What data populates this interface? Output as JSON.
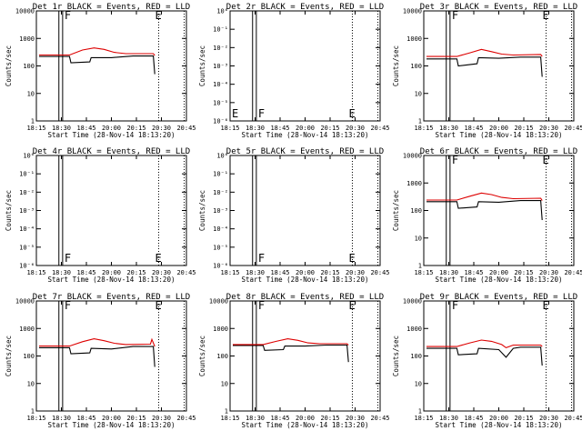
{
  "xticks": [
    "18:15",
    "18:30",
    "18:45",
    "20:00",
    "20:15",
    "20:30",
    "20:45"
  ],
  "xlabel": "Start Time (28-Nov-14 18:13:20)",
  "ylabel": "Counts/sec",
  "series_colors": {
    "events": "#000000",
    "lld": "#dd0000"
  },
  "chart_data": [
    {
      "type": "line",
      "title": "Det 1r BLACK = Events, RED = LLD",
      "scale": "log",
      "ylim": [
        1,
        10000
      ],
      "yticks": [
        "1",
        "10",
        "100",
        "1000",
        "10000"
      ],
      "markers": [
        "F",
        "E"
      ],
      "has_data": true,
      "series": [
        {
          "key": "events",
          "points": [
            [
              0,
              220
            ],
            [
              0.21,
              220
            ],
            [
              0.22,
              130
            ],
            [
              0.35,
              140
            ],
            [
              0.36,
              200
            ],
            [
              0.5,
              200
            ],
            [
              0.65,
              230
            ],
            [
              0.79,
              230
            ],
            [
              0.8,
              50
            ]
          ]
        },
        {
          "key": "lld",
          "points": [
            [
              0,
              250
            ],
            [
              0.21,
              250
            ],
            [
              0.3,
              380
            ],
            [
              0.38,
              450
            ],
            [
              0.45,
              400
            ],
            [
              0.52,
              310
            ],
            [
              0.6,
              280
            ],
            [
              0.79,
              280
            ],
            [
              0.8,
              240
            ]
          ]
        }
      ]
    },
    {
      "type": "line",
      "title": "Det 2r BLACK = Events, RED = LLD",
      "scale": "log",
      "ylim": [
        1,
        1e-06
      ],
      "yticks": [
        "10⁻⁶",
        "10⁻⁵",
        "10⁻⁴",
        "10⁻³",
        "10⁻²",
        "10⁻¹",
        "10⁰"
      ],
      "markers": [
        "E",
        "F",
        "E"
      ],
      "has_data": false,
      "series": []
    },
    {
      "type": "line",
      "title": "Det 3r BLACK = Events, RED = LLD",
      "scale": "log",
      "ylim": [
        1,
        10000
      ],
      "yticks": [
        "1",
        "10",
        "100",
        "1000",
        "10000"
      ],
      "markers": [
        "F",
        "E"
      ],
      "has_data": true,
      "series": [
        {
          "key": "events",
          "points": [
            [
              0,
              180
            ],
            [
              0.21,
              180
            ],
            [
              0.22,
              100
            ],
            [
              0.35,
              120
            ],
            [
              0.36,
              200
            ],
            [
              0.5,
              190
            ],
            [
              0.65,
              210
            ],
            [
              0.79,
              210
            ],
            [
              0.8,
              40
            ]
          ]
        },
        {
          "key": "lld",
          "points": [
            [
              0,
              220
            ],
            [
              0.21,
              220
            ],
            [
              0.3,
              300
            ],
            [
              0.38,
              400
            ],
            [
              0.45,
              330
            ],
            [
              0.52,
              270
            ],
            [
              0.6,
              250
            ],
            [
              0.79,
              260
            ],
            [
              0.8,
              220
            ]
          ]
        }
      ]
    },
    {
      "type": "line",
      "title": "Det 4r BLACK = Events, RED = LLD",
      "scale": "log",
      "ylim": [
        1,
        1e-06
      ],
      "yticks": [
        "10⁻⁶",
        "10⁻⁵",
        "10⁻⁴",
        "10⁻³",
        "10⁻²",
        "10⁻¹",
        "10⁰"
      ],
      "markers": [
        "F",
        "E"
      ],
      "has_data": false,
      "series": []
    },
    {
      "type": "line",
      "title": "Det 5r BLACK = Events, RED = LLD",
      "scale": "log",
      "ylim": [
        1,
        1e-06
      ],
      "yticks": [
        "10⁻⁶",
        "10⁻⁵",
        "10⁻⁴",
        "10⁻³",
        "10⁻²",
        "10⁻¹",
        "10⁰"
      ],
      "markers": [
        "F",
        "E"
      ],
      "has_data": false,
      "series": []
    },
    {
      "type": "line",
      "title": "Det 6r BLACK = Events, RED = LLD",
      "scale": "log",
      "ylim": [
        1,
        10000
      ],
      "yticks": [
        "1",
        "10",
        "100",
        "1000",
        "10000"
      ],
      "markers": [
        "F",
        "E"
      ],
      "has_data": true,
      "series": [
        {
          "key": "events",
          "points": [
            [
              0,
              210
            ],
            [
              0.21,
              210
            ],
            [
              0.22,
              120
            ],
            [
              0.35,
              135
            ],
            [
              0.36,
              210
            ],
            [
              0.5,
              200
            ],
            [
              0.65,
              230
            ],
            [
              0.79,
              230
            ],
            [
              0.8,
              45
            ]
          ]
        },
        {
          "key": "lld",
          "points": [
            [
              0,
              240
            ],
            [
              0.21,
              240
            ],
            [
              0.3,
              330
            ],
            [
              0.38,
              430
            ],
            [
              0.45,
              380
            ],
            [
              0.52,
              300
            ],
            [
              0.6,
              270
            ],
            [
              0.79,
              280
            ],
            [
              0.8,
              230
            ]
          ]
        }
      ]
    },
    {
      "type": "line",
      "title": "Det 7r BLACK = Events, RED = LLD",
      "scale": "log",
      "ylim": [
        1,
        10000
      ],
      "yticks": [
        "1",
        "10",
        "100",
        "1000",
        "10000"
      ],
      "markers": [
        "F",
        "E"
      ],
      "has_data": true,
      "series": [
        {
          "key": "events",
          "points": [
            [
              0,
              200
            ],
            [
              0.21,
              200
            ],
            [
              0.22,
              120
            ],
            [
              0.35,
              130
            ],
            [
              0.36,
              190
            ],
            [
              0.5,
              180
            ],
            [
              0.65,
              220
            ],
            [
              0.79,
              220
            ],
            [
              0.8,
              40
            ]
          ]
        },
        {
          "key": "lld",
          "points": [
            [
              0,
              230
            ],
            [
              0.21,
              230
            ],
            [
              0.3,
              330
            ],
            [
              0.38,
              420
            ],
            [
              0.45,
              360
            ],
            [
              0.52,
              290
            ],
            [
              0.6,
              260
            ],
            [
              0.77,
              270
            ],
            [
              0.78,
              400
            ],
            [
              0.8,
              220
            ]
          ]
        }
      ]
    },
    {
      "type": "line",
      "title": "Det 8r BLACK = Events, RED = LLD",
      "scale": "log",
      "ylim": [
        1,
        10000
      ],
      "yticks": [
        "1",
        "10",
        "100",
        "1000",
        "10000"
      ],
      "markers": [
        "F",
        "E"
      ],
      "has_data": true,
      "series": [
        {
          "key": "events",
          "points": [
            [
              0,
              240
            ],
            [
              0.21,
              240
            ],
            [
              0.22,
              160
            ],
            [
              0.35,
              170
            ],
            [
              0.36,
              230
            ],
            [
              0.5,
              230
            ],
            [
              0.65,
              250
            ],
            [
              0.79,
              250
            ],
            [
              0.8,
              60
            ]
          ]
        },
        {
          "key": "lld",
          "points": [
            [
              0,
              260
            ],
            [
              0.21,
              260
            ],
            [
              0.3,
              340
            ],
            [
              0.38,
              420
            ],
            [
              0.45,
              370
            ],
            [
              0.52,
              300
            ],
            [
              0.6,
              280
            ],
            [
              0.79,
              280
            ],
            [
              0.8,
              250
            ]
          ]
        }
      ]
    },
    {
      "type": "line",
      "title": "Det 9r BLACK = Events, RED = LLD",
      "scale": "log",
      "ylim": [
        1,
        10000
      ],
      "yticks": [
        "1",
        "10",
        "100",
        "1000",
        "10000"
      ],
      "markers": [
        "F",
        "E"
      ],
      "has_data": true,
      "series": [
        {
          "key": "events",
          "points": [
            [
              0,
              190
            ],
            [
              0.21,
              190
            ],
            [
              0.22,
              110
            ],
            [
              0.35,
              120
            ],
            [
              0.36,
              190
            ],
            [
              0.5,
              170
            ],
            [
              0.55,
              90
            ],
            [
              0.6,
              190
            ],
            [
              0.65,
              210
            ],
            [
              0.79,
              210
            ],
            [
              0.8,
              45
            ]
          ]
        },
        {
          "key": "lld",
          "points": [
            [
              0,
              220
            ],
            [
              0.21,
              220
            ],
            [
              0.3,
              300
            ],
            [
              0.38,
              380
            ],
            [
              0.45,
              340
            ],
            [
              0.52,
              260
            ],
            [
              0.55,
              200
            ],
            [
              0.6,
              250
            ],
            [
              0.79,
              250
            ],
            [
              0.8,
              220
            ]
          ]
        }
      ]
    }
  ]
}
